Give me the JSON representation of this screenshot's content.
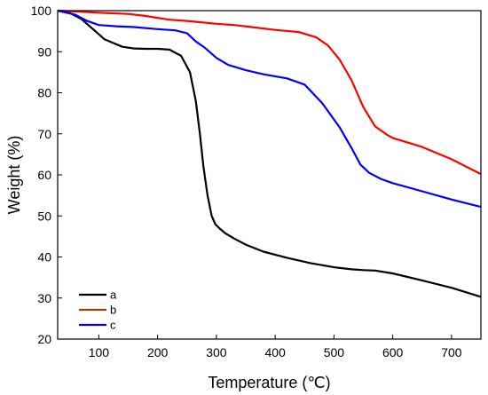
{
  "chart_data": {
    "type": "line",
    "xlabel": "Temperature (℃)",
    "ylabel": "Weight (%)",
    "xlim": [
      30,
      750
    ],
    "ylim": [
      20,
      100
    ],
    "xticks": [
      100,
      200,
      300,
      400,
      500,
      600,
      700
    ],
    "yticks": [
      20,
      30,
      40,
      50,
      60,
      70,
      80,
      90,
      100
    ],
    "legend_position": "bottom-left",
    "grid": false,
    "series": [
      {
        "name": "a",
        "color": "#000000",
        "x": [
          30,
          50,
          70,
          90,
          110,
          140,
          160,
          180,
          200,
          220,
          240,
          255,
          265,
          272,
          278,
          285,
          292,
          298,
          305,
          315,
          330,
          350,
          380,
          420,
          460,
          500,
          530,
          550,
          570,
          600,
          650,
          700,
          750
        ],
        "y": [
          100,
          99.5,
          98,
          95.5,
          93,
          91.2,
          90.8,
          90.7,
          90.7,
          90.5,
          89,
          85,
          78,
          70,
          62,
          55,
          50,
          48,
          47,
          45.8,
          44.5,
          43,
          41.3,
          39.8,
          38.5,
          37.5,
          37,
          36.8,
          36.7,
          36,
          34.3,
          32.5,
          30.3
        ]
      },
      {
        "name": "b",
        "color": "#ff0000",
        "x": [
          30,
          60,
          100,
          150,
          180,
          220,
          250,
          270,
          300,
          330,
          360,
          400,
          440,
          470,
          490,
          510,
          530,
          550,
          570,
          590,
          600,
          650,
          700,
          750
        ],
        "y": [
          100,
          99.8,
          99.5,
          99.2,
          98.7,
          97.8,
          97.5,
          97.2,
          96.8,
          96.5,
          96,
          95.3,
          94.8,
          93.5,
          91.5,
          88,
          83,
          76.5,
          71.8,
          69.8,
          69,
          66.8,
          63.8,
          60.2
        ]
      },
      {
        "name": "c",
        "color": "#0000ff",
        "x": [
          30,
          60,
          80,
          100,
          130,
          160,
          200,
          230,
          250,
          265,
          280,
          300,
          320,
          350,
          380,
          420,
          450,
          480,
          510,
          530,
          545,
          560,
          580,
          600,
          650,
          700,
          750
        ],
        "y": [
          100,
          99,
          97.5,
          96.5,
          96.2,
          96,
          95.5,
          95.2,
          94.5,
          92.5,
          91,
          88.5,
          86.8,
          85.5,
          84.5,
          83.5,
          82,
          77.5,
          71.5,
          66.5,
          62.5,
          60.5,
          59,
          58,
          56,
          54,
          52.2
        ]
      }
    ]
  }
}
